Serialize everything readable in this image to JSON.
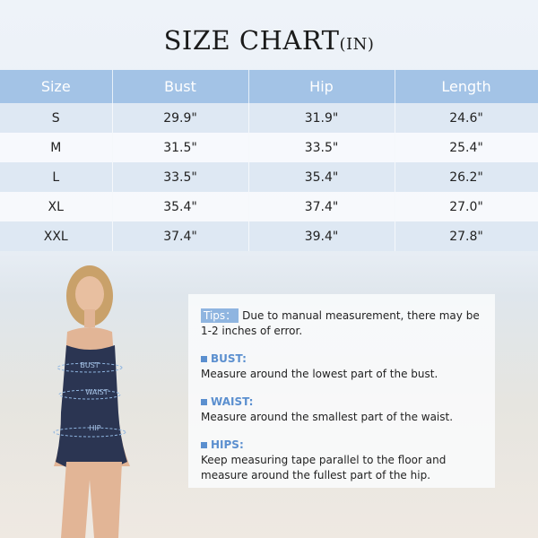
{
  "title": {
    "main": "SIZE CHART",
    "unit": "(IN)"
  },
  "table": {
    "headers": [
      "Size",
      "Bust",
      "Hip",
      "Length"
    ],
    "rows": [
      [
        "S",
        "29.9\"",
        "31.9\"",
        "24.6\""
      ],
      [
        "M",
        "31.5\"",
        "33.5\"",
        "25.4\""
      ],
      [
        "L",
        "33.5\"",
        "35.4\"",
        "26.2\""
      ],
      [
        "XL",
        "35.4\"",
        "37.4\"",
        "27.0\""
      ],
      [
        "XXL",
        "37.4\"",
        "39.4\"",
        "27.8\""
      ]
    ]
  },
  "figure": {
    "labels": {
      "bust": "BUST",
      "waist": "WAIST",
      "hip": "HIP"
    }
  },
  "tips": {
    "label": "Tips：",
    "text": "Due to manual measurement, there may be 1-2 inches of error."
  },
  "sections": [
    {
      "heading": "BUST:",
      "text": "Measure around the lowest part of the bust."
    },
    {
      "heading": "WAIST:",
      "text": "Measure around the smallest part of the waist."
    },
    {
      "heading": "HIPS:",
      "text": "Keep measuring tape parallel to the floor and measure around the fullest part of the hip."
    }
  ],
  "colors": {
    "header": "#a3c3e6",
    "accent": "#5b8fcf"
  }
}
